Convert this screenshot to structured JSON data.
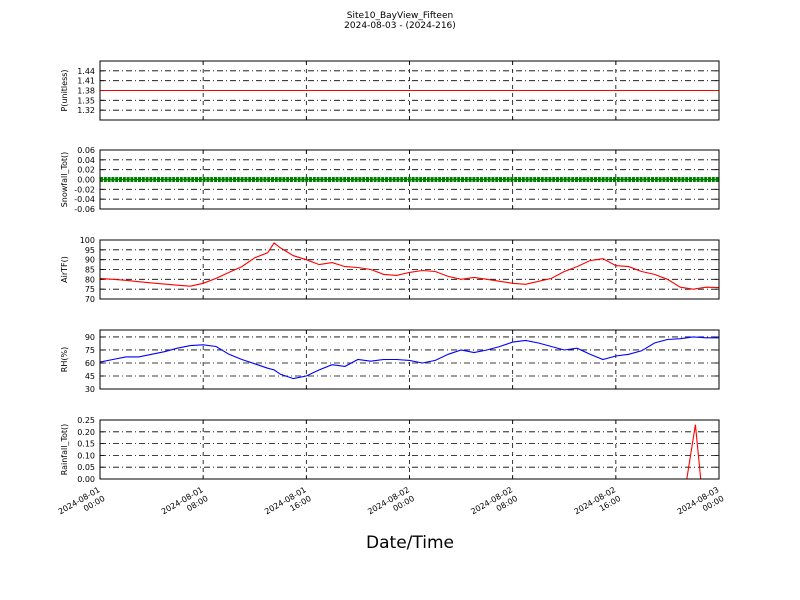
{
  "title": "Site10_BayView_Fifteen",
  "subtitle": "2024-08-03 - (2024-216)",
  "xlabel": "Date/Time",
  "x_ticks": [
    {
      "value": "2024-08-01 00:00",
      "line1": "2024-08-01",
      "line2": "00:00"
    },
    {
      "value": "2024-08-01 08:00",
      "line1": "2024-08-01",
      "line2": "08:00"
    },
    {
      "value": "2024-08-01 16:00",
      "line1": "2024-08-01",
      "line2": "16:00"
    },
    {
      "value": "2024-08-02 00:00",
      "line1": "2024-08-02",
      "line2": "00:00"
    },
    {
      "value": "2024-08-02 08:00",
      "line1": "2024-08-02",
      "line2": "08:00"
    },
    {
      "value": "2024-08-02 16:00",
      "line1": "2024-08-02",
      "line2": "16:00"
    },
    {
      "value": "2024-08-03 00:00",
      "line1": "2024-08-03",
      "line2": "00:00"
    }
  ],
  "colors": {
    "red": "#ff0000",
    "green": "#008000",
    "blue": "#0000ff",
    "grid": "#000000"
  },
  "chart_data": [
    {
      "type": "line",
      "ylabel": "P(unitless)",
      "color": "#ff0000",
      "ylim": [
        1.29,
        1.47
      ],
      "yticks": [
        "1.32",
        "1.35",
        "1.38",
        "1.41",
        "1.44"
      ],
      "grid": true,
      "series": [
        {
          "x": [
            "2024-08-01 00:00",
            "2024-08-03 00:00"
          ],
          "y": [
            1.38,
            1.38
          ]
        }
      ]
    },
    {
      "type": "line",
      "ylabel": "Snowfall_Tot()",
      "color": "#008000",
      "markers": true,
      "ylim": [
        -0.06,
        0.06
      ],
      "yticks": [
        "-0.06",
        "-0.04",
        "-0.02",
        "0.00",
        "0.02",
        "0.04",
        "0.06"
      ],
      "grid": true,
      "series": [
        {
          "x": [
            "2024-08-01 00:00",
            "2024-08-03 00:00"
          ],
          "y": [
            0.0,
            0.0
          ]
        }
      ]
    },
    {
      "type": "line",
      "ylabel": "AirTF()",
      "color": "#ff0000",
      "ylim": [
        70,
        100
      ],
      "yticks": [
        "70",
        "75",
        "80",
        "85",
        "90",
        "95",
        "100"
      ],
      "grid": true,
      "series": [
        {
          "x": [
            "2024-08-01 00:00",
            "2024-08-01 01:00",
            "2024-08-01 02:00",
            "2024-08-01 03:00",
            "2024-08-01 04:00",
            "2024-08-01 05:00",
            "2024-08-01 06:00",
            "2024-08-01 07:00",
            "2024-08-01 08:00",
            "2024-08-01 09:00",
            "2024-08-01 10:00",
            "2024-08-01 11:00",
            "2024-08-01 12:00",
            "2024-08-01 13:00",
            "2024-08-01 13:30",
            "2024-08-01 14:00",
            "2024-08-01 15:00",
            "2024-08-01 16:00",
            "2024-08-01 17:00",
            "2024-08-01 18:00",
            "2024-08-01 19:00",
            "2024-08-01 20:00",
            "2024-08-01 21:00",
            "2024-08-01 22:00",
            "2024-08-01 23:00",
            "2024-08-02 00:00",
            "2024-08-02 01:00",
            "2024-08-02 02:00",
            "2024-08-02 03:00",
            "2024-08-02 04:00",
            "2024-08-02 05:00",
            "2024-08-02 06:00",
            "2024-08-02 07:00",
            "2024-08-02 08:00",
            "2024-08-02 09:00",
            "2024-08-02 10:00",
            "2024-08-02 11:00",
            "2024-08-02 12:00",
            "2024-08-02 13:00",
            "2024-08-02 14:00",
            "2024-08-02 15:00",
            "2024-08-02 16:00",
            "2024-08-02 17:00",
            "2024-08-02 18:00",
            "2024-08-02 19:00",
            "2024-08-02 20:00",
            "2024-08-02 21:00",
            "2024-08-02 22:00",
            "2024-08-02 23:00",
            "2024-08-03 00:00"
          ],
          "y": [
            80.5,
            80,
            79.5,
            78.8,
            78.2,
            77.6,
            77,
            76.5,
            78,
            80.5,
            83.5,
            86.5,
            91,
            93.5,
            98.5,
            96,
            92,
            90,
            87.5,
            88.5,
            86.5,
            86,
            85,
            82.5,
            82,
            83.5,
            84.5,
            84,
            81.5,
            80,
            81,
            80,
            79,
            78,
            77.5,
            79,
            80.5,
            84,
            86.5,
            89.5,
            90.5,
            87,
            86.5,
            84,
            82.5,
            80,
            76,
            75,
            76,
            75.8
          ]
        }
      ]
    },
    {
      "type": "line",
      "ylabel": "RH(%)",
      "color": "#0000ff",
      "ylim": [
        30,
        98
      ],
      "yticks": [
        "30",
        "45",
        "60",
        "75",
        "90"
      ],
      "grid": true,
      "series": [
        {
          "x": [
            "2024-08-01 00:00",
            "2024-08-01 01:00",
            "2024-08-01 02:00",
            "2024-08-01 03:00",
            "2024-08-01 04:00",
            "2024-08-01 05:00",
            "2024-08-01 06:00",
            "2024-08-01 07:00",
            "2024-08-01 08:00",
            "2024-08-01 09:00",
            "2024-08-01 10:00",
            "2024-08-01 11:00",
            "2024-08-01 12:00",
            "2024-08-01 13:00",
            "2024-08-01 13:30",
            "2024-08-01 14:00",
            "2024-08-01 15:00",
            "2024-08-01 16:00",
            "2024-08-01 17:00",
            "2024-08-01 18:00",
            "2024-08-01 19:00",
            "2024-08-01 20:00",
            "2024-08-01 21:00",
            "2024-08-01 22:00",
            "2024-08-01 23:00",
            "2024-08-02 00:00",
            "2024-08-02 01:00",
            "2024-08-02 02:00",
            "2024-08-02 03:00",
            "2024-08-02 04:00",
            "2024-08-02 05:00",
            "2024-08-02 06:00",
            "2024-08-02 07:00",
            "2024-08-02 08:00",
            "2024-08-02 09:00",
            "2024-08-02 10:00",
            "2024-08-02 11:00",
            "2024-08-02 12:00",
            "2024-08-02 13:00",
            "2024-08-02 14:00",
            "2024-08-02 15:00",
            "2024-08-02 16:00",
            "2024-08-02 17:00",
            "2024-08-02 18:00",
            "2024-08-02 19:00",
            "2024-08-02 20:00",
            "2024-08-02 21:00",
            "2024-08-02 22:00",
            "2024-08-02 23:00",
            "2024-08-03 00:00"
          ],
          "y": [
            61,
            64,
            67,
            67,
            70,
            73,
            77,
            80,
            81,
            79,
            70,
            64,
            59,
            54,
            52,
            47,
            42,
            45,
            52,
            58,
            56,
            64,
            62,
            64,
            64,
            63,
            60,
            63,
            70,
            75,
            72,
            75,
            79,
            84,
            86,
            83,
            79,
            75,
            77,
            70,
            64,
            68,
            70,
            74,
            83,
            87,
            88,
            90,
            89,
            89
          ]
        }
      ]
    },
    {
      "type": "line",
      "ylabel": "Rainfall_Tot()",
      "color": "#ff0000",
      "ylim": [
        0.0,
        0.25
      ],
      "yticks": [
        "0.00",
        "0.05",
        "0.10",
        "0.15",
        "0.20",
        "0.25"
      ],
      "grid": true,
      "series": [
        {
          "x": [
            "2024-08-01 00:00",
            "2024-08-02 21:30",
            "2024-08-02 22:10",
            "2024-08-02 22:35",
            "2024-08-02 23:00",
            "2024-08-03 00:00"
          ],
          "y": [
            0,
            0,
            0.23,
            0,
            0,
            0
          ]
        }
      ]
    }
  ]
}
